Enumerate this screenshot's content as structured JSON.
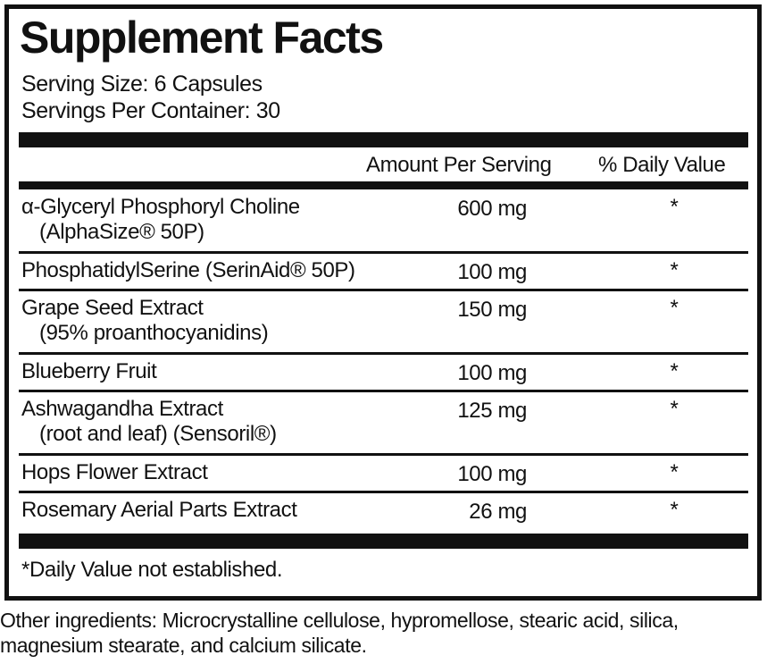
{
  "title": "Supplement Facts",
  "serving_size": "Serving Size: 6 Capsules",
  "servings_per_container": "Servings Per Container: 30",
  "table": {
    "header": [
      "Amount Per Serving",
      "% Daily Value"
    ],
    "rows": [
      {
        "name": "α-Glyceryl Phosphoryl Choline",
        "sub": "(AlphaSize® 50P)",
        "amount": "600 mg",
        "dv": "*"
      },
      {
        "name": "PhosphatidylSerine (SerinAid® 50P)",
        "amount": "100 mg",
        "dv": "*"
      },
      {
        "name": "Grape Seed Extract",
        "sub": "(95% proanthocyanidins)",
        "amount": "150 mg",
        "dv": "*"
      },
      {
        "name": "Blueberry Fruit",
        "amount": "100 mg",
        "dv": "*"
      },
      {
        "name": "Ashwagandha Extract",
        "sub": "(root and leaf) (Sensoril®)",
        "amount": "125 mg",
        "dv": "*"
      },
      {
        "name": "Hops Flower Extract",
        "amount": "100 mg",
        "dv": "*"
      },
      {
        "name": "Rosemary Aerial Parts Extract",
        "amount": "26 mg",
        "dv": "*"
      }
    ]
  },
  "footnote": "*Daily Value not established.",
  "other_ingredients": [
    "Other ingredients: Microcrystalline cellulose, hypromellose, stearic acid, silica,",
    "magnesium stearate, and calcium silicate."
  ]
}
